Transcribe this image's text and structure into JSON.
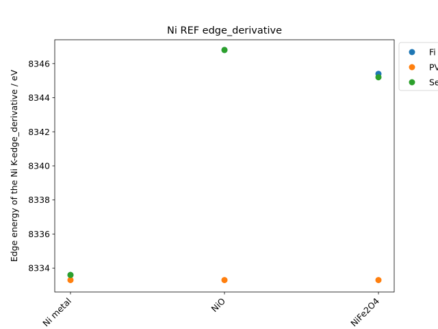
{
  "chart_data": {
    "type": "scatter",
    "title": "Ni REF edge_derivative",
    "xlabel": "",
    "ylabel": "Edge energy of the Ni K-edge_derivative / eV",
    "categories": [
      "Ni metal",
      "NiO",
      "NiFe2O4"
    ],
    "ylim": [
      8332.6,
      8347.4
    ],
    "yticks": [
      8334,
      8336,
      8338,
      8340,
      8342,
      8344,
      8346
    ],
    "grid": false,
    "legend_position": "outside-right",
    "series": [
      {
        "name": "Fi",
        "color": "#1f77b4",
        "values": [
          8333.6,
          8346.8,
          8345.4
        ]
      },
      {
        "name": "PV",
        "color": "#ff7f0e",
        "values": [
          8333.3,
          8333.3,
          8333.3
        ]
      },
      {
        "name": "Se",
        "color": "#2ca02c",
        "values": [
          8333.6,
          8346.8,
          8345.2
        ]
      }
    ]
  }
}
